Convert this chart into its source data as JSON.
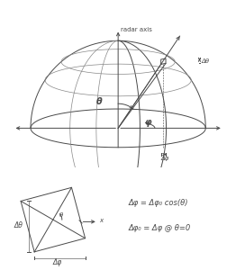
{
  "bg_color": "#ffffff",
  "line_color": "#4a4a4a",
  "light_line_color": "#888888",
  "title_text": "radar axis",
  "theta_label": "θ",
  "phi_label": "φ",
  "delta_theta_label": "Δθ",
  "delta_phi_label": "Δφ",
  "eq1": "Δφ = Δφ₀ cos(θ)",
  "eq2": "Δφ₀ = Δφ @ θ=0",
  "font_size_small": 5.0,
  "font_size_label": 7.0,
  "font_size_eq": 6.0
}
